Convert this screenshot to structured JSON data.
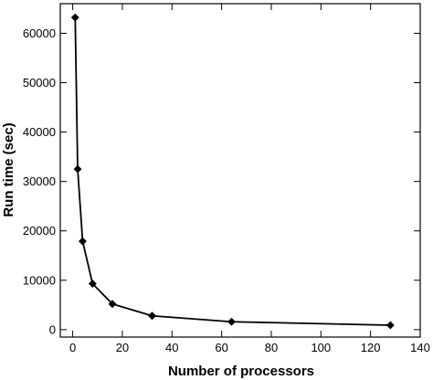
{
  "chart_data": {
    "type": "line",
    "title": "",
    "xlabel": "Number of processors",
    "ylabel": "Run time (sec)",
    "xlim": [
      -5,
      140
    ],
    "ylim": [
      -1500,
      66000
    ],
    "x_ticks": [
      0,
      20,
      40,
      60,
      80,
      100,
      120,
      140
    ],
    "y_ticks": [
      0,
      10000,
      20000,
      30000,
      40000,
      50000,
      60000
    ],
    "grid": false,
    "legend": "none",
    "line_color": "#000000",
    "marker": "diamond",
    "series": [
      {
        "x": [
          1,
          2,
          4,
          8,
          16,
          32,
          64,
          128
        ],
        "y": [
          63200,
          32500,
          17900,
          9300,
          5200,
          2800,
          1600,
          900
        ]
      }
    ]
  }
}
